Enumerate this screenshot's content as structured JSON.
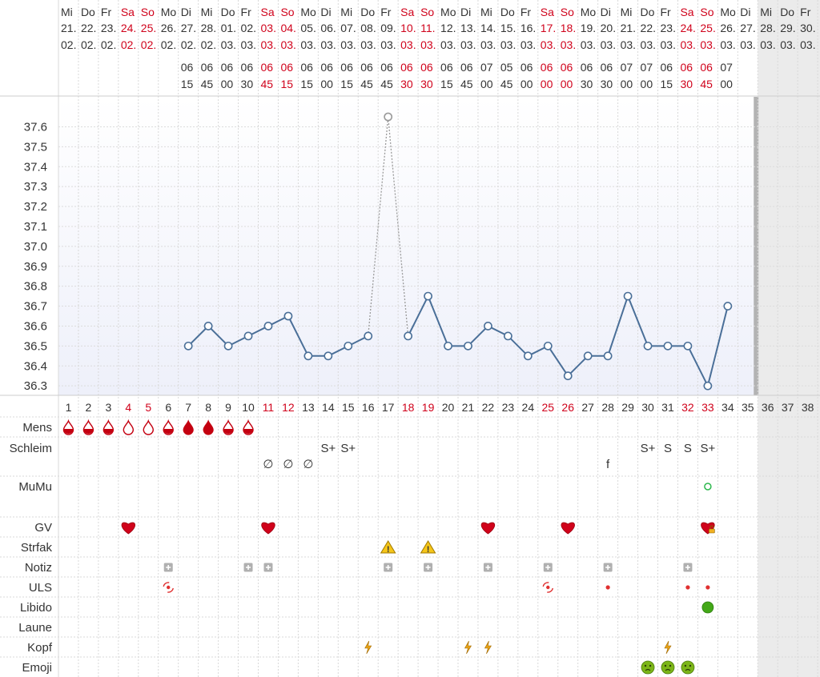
{
  "header": {
    "weekdays": [
      "Mi",
      "Do",
      "Fr",
      "Sa",
      "So",
      "Mo",
      "Di",
      "Mi",
      "Do",
      "Fr",
      "Sa",
      "So",
      "Mo",
      "Di",
      "Mi",
      "Do",
      "Fr",
      "Sa",
      "So",
      "Mo",
      "Di",
      "Mi",
      "Do",
      "Fr",
      "Sa",
      "So",
      "Mo",
      "Di",
      "Mi",
      "Do",
      "Fr",
      "Sa",
      "So",
      "Mo",
      "Di",
      "Mi",
      "Do",
      "Fr"
    ],
    "days": [
      "21.",
      "22.",
      "23.",
      "24.",
      "25.",
      "26.",
      "27.",
      "28.",
      "01.",
      "02.",
      "03.",
      "04.",
      "05.",
      "06.",
      "07.",
      "08.",
      "09.",
      "10.",
      "11.",
      "12.",
      "13.",
      "14.",
      "15.",
      "16.",
      "17.",
      "18.",
      "19.",
      "20.",
      "21.",
      "22.",
      "23.",
      "24.",
      "25.",
      "26.",
      "27.",
      "28.",
      "29.",
      "30."
    ],
    "months": [
      "02.",
      "02.",
      "02.",
      "02.",
      "02.",
      "02.",
      "02.",
      "02.",
      "03.",
      "03.",
      "03.",
      "03.",
      "03.",
      "03.",
      "03.",
      "03.",
      "03.",
      "03.",
      "03.",
      "03.",
      "03.",
      "03.",
      "03.",
      "03.",
      "03.",
      "03.",
      "03.",
      "03.",
      "03.",
      "03.",
      "03.",
      "03.",
      "03.",
      "03.",
      "03.",
      "03.",
      "03.",
      "03."
    ],
    "weekend": [
      false,
      false,
      false,
      true,
      true,
      false,
      false,
      false,
      false,
      false,
      true,
      true,
      false,
      false,
      false,
      false,
      false,
      true,
      true,
      false,
      false,
      false,
      false,
      false,
      true,
      true,
      false,
      false,
      false,
      false,
      false,
      true,
      true,
      false,
      false,
      false,
      false,
      false
    ],
    "time_hours": [
      "",
      "",
      "",
      "",
      "",
      "",
      "06",
      "06",
      "06",
      "06",
      "06",
      "06",
      "06",
      "06",
      "06",
      "06",
      "06",
      "06",
      "06",
      "06",
      "06",
      "07",
      "05",
      "06",
      "06",
      "06",
      "06",
      "06",
      "07",
      "07",
      "06",
      "06",
      "06",
      "07",
      "",
      "",
      "",
      ""
    ],
    "time_minutes": [
      "",
      "",
      "",
      "",
      "",
      "",
      "15",
      "45",
      "00",
      "30",
      "45",
      "15",
      "15",
      "00",
      "15",
      "45",
      "45",
      "30",
      "30",
      "15",
      "45",
      "00",
      "45",
      "00",
      "00",
      "00",
      "30",
      "30",
      "00",
      "00",
      "15",
      "30",
      "45",
      "00",
      "",
      "",
      "",
      ""
    ],
    "time_weekend": [
      false,
      false,
      false,
      false,
      false,
      false,
      false,
      false,
      false,
      false,
      true,
      true,
      false,
      false,
      false,
      false,
      false,
      true,
      true,
      false,
      false,
      false,
      false,
      false,
      true,
      true,
      false,
      false,
      false,
      false,
      false,
      true,
      true,
      false,
      false,
      false,
      false,
      false
    ]
  },
  "chart_data": {
    "type": "line",
    "title": "",
    "xlabel": "",
    "ylabel": "",
    "y_ticks": [
      "37.6",
      "37.5",
      "37.4",
      "37.3",
      "37.2",
      "37.1",
      "37.0",
      "36.9",
      "36.8",
      "36.7",
      "36.6",
      "36.5",
      "36.4",
      "36.3"
    ],
    "ylim": [
      36.23,
      37.69
    ],
    "x": [
      1,
      2,
      3,
      4,
      5,
      6,
      7,
      8,
      9,
      10,
      11,
      12,
      13,
      14,
      15,
      16,
      17,
      18,
      19,
      20,
      21,
      22,
      23,
      24,
      25,
      26,
      27,
      28,
      29,
      30,
      31,
      32,
      33,
      34,
      35,
      36,
      37,
      38
    ],
    "cycle_day_labels": [
      "1",
      "2",
      "3",
      "4",
      "5",
      "6",
      "7",
      "8",
      "9",
      "10",
      "11",
      "12",
      "13",
      "14",
      "15",
      "16",
      "17",
      "18",
      "19",
      "20",
      "21",
      "22",
      "23",
      "24",
      "25",
      "26",
      "27",
      "28",
      "29",
      "30",
      "31",
      "32",
      "33",
      "34",
      "35",
      "36",
      "37",
      "38"
    ],
    "series": [
      {
        "values": [
          null,
          null,
          null,
          null,
          null,
          null,
          36.5,
          36.6,
          36.5,
          36.55,
          36.6,
          36.65,
          36.45,
          36.45,
          36.5,
          36.55,
          37.65,
          36.55,
          36.75,
          36.5,
          36.5,
          36.6,
          36.55,
          36.45,
          36.5,
          36.35,
          36.45,
          36.45,
          36.75,
          36.5,
          36.5,
          36.5,
          36.3,
          36.7,
          null,
          null,
          null,
          null
        ],
        "excluded": [
          17
        ],
        "color": "#4a6f98"
      }
    ],
    "grid": true,
    "future_from_day": 36
  },
  "rows": {
    "labels": [
      "Mens",
      "Schleim",
      "MuMu",
      "GV",
      "Strfak",
      "Notiz",
      "ULS",
      "Libido",
      "Laune",
      "Kopf",
      "Emoji"
    ],
    "mens": {
      "full": [
        7,
        8
      ],
      "half": [
        1,
        2,
        3,
        6,
        9,
        10
      ],
      "empty": [
        4,
        5
      ]
    },
    "schleim": {
      "upper": {
        "14": "S+",
        "15": "S+",
        "30": "S+",
        "31": "S",
        "32": "S",
        "33": "S+"
      },
      "lower": {
        "11": "∅",
        "12": "∅",
        "13": "∅",
        "28": "f"
      }
    },
    "mumu_days": [
      33
    ],
    "gv_days": [
      4,
      11,
      22,
      26,
      33
    ],
    "gv_lock_days": [
      33
    ],
    "strfak_days": [
      17,
      19
    ],
    "notiz_days": [
      6,
      10,
      11,
      17,
      19,
      22,
      25,
      28,
      32
    ],
    "uls_swirl_days": [
      6,
      25
    ],
    "uls_dot_days": [
      28,
      32,
      33
    ],
    "libido_days": [
      33
    ],
    "laune_days": [],
    "kopf_days": [
      16,
      21,
      22,
      31
    ],
    "emoji_days": [
      30,
      31,
      32
    ],
    "colors": {
      "weekend": "#d0021b",
      "text": "#333333",
      "line": "#4a6f98",
      "heart": "#d0021b",
      "warning": "#f5c518",
      "bolt": "#e8a317",
      "libido": "#43a818",
      "emoji": "#7cb518",
      "mumu": "#2db84d"
    }
  }
}
